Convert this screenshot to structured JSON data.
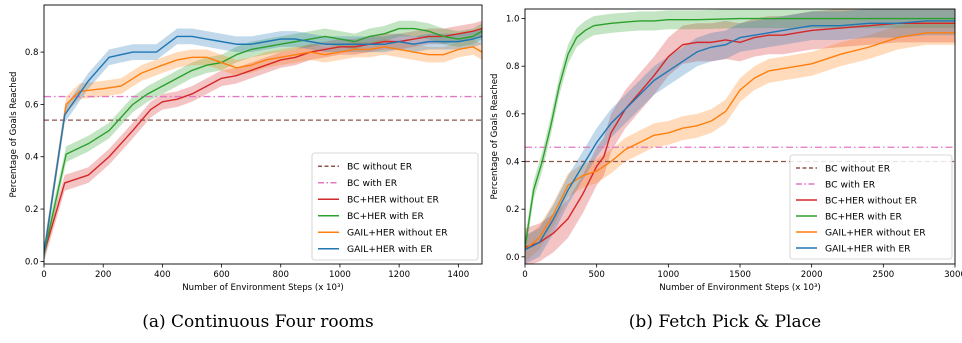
{
  "chart_data": [
    {
      "type": "line",
      "caption": "(a) Continuous Four rooms",
      "xlabel": "Number of Environment Steps (x 10³)",
      "ylabel": "Percentage of Goals Reached",
      "xlim": [
        0,
        1480
      ],
      "ylim": [
        -0.01,
        0.98
      ],
      "xticks": [
        0,
        200,
        400,
        600,
        800,
        1000,
        1200,
        1400
      ],
      "yticks": [
        0.0,
        0.2,
        0.4,
        0.6,
        0.8
      ],
      "ytick_labels": [
        "0.0",
        "0.2",
        "0.4",
        "0.6",
        "0.8"
      ],
      "grid": false,
      "legend_position": "lower-right",
      "series": [
        {
          "name": "BC without ER",
          "style": "hline",
          "dash": "dashed",
          "color": "#8c564b",
          "value": 0.54
        },
        {
          "name": "BC with ER",
          "style": "hline",
          "dash": "dashdot",
          "color": "#e377c2",
          "value": 0.63
        },
        {
          "name": "BC+HER without ER",
          "color": "#d62728",
          "x": [
            0,
            70,
            150,
            220,
            300,
            360,
            400,
            450,
            500,
            550,
            600,
            650,
            700,
            750,
            800,
            850,
            900,
            950,
            1000,
            1050,
            1100,
            1150,
            1200,
            1250,
            1300,
            1350,
            1400,
            1450,
            1480
          ],
          "y": [
            0.03,
            0.3,
            0.33,
            0.4,
            0.5,
            0.58,
            0.61,
            0.62,
            0.64,
            0.67,
            0.7,
            0.71,
            0.73,
            0.75,
            0.77,
            0.78,
            0.8,
            0.81,
            0.82,
            0.82,
            0.83,
            0.84,
            0.84,
            0.85,
            0.86,
            0.86,
            0.87,
            0.88,
            0.89
          ],
          "band": 0.03
        },
        {
          "name": "BC+HER with ER",
          "color": "#2ca02c",
          "x": [
            0,
            75,
            150,
            220,
            300,
            350,
            400,
            450,
            500,
            550,
            600,
            650,
            700,
            750,
            800,
            850,
            900,
            950,
            1000,
            1050,
            1100,
            1150,
            1200,
            1250,
            1300,
            1350,
            1400,
            1450,
            1480
          ],
          "y": [
            0.03,
            0.41,
            0.45,
            0.5,
            0.6,
            0.64,
            0.67,
            0.7,
            0.73,
            0.75,
            0.76,
            0.79,
            0.81,
            0.82,
            0.83,
            0.84,
            0.85,
            0.86,
            0.85,
            0.84,
            0.86,
            0.87,
            0.89,
            0.89,
            0.88,
            0.86,
            0.85,
            0.86,
            0.88
          ],
          "band": 0.03
        },
        {
          "name": "GAIL+HER without ER",
          "color": "#ff7f0e",
          "x": [
            0,
            75,
            120,
            200,
            260,
            330,
            400,
            450,
            500,
            550,
            600,
            650,
            700,
            750,
            800,
            850,
            900,
            950,
            1000,
            1050,
            1100,
            1150,
            1200,
            1250,
            1300,
            1350,
            1400,
            1450,
            1480
          ],
          "y": [
            0.03,
            0.6,
            0.65,
            0.66,
            0.67,
            0.72,
            0.75,
            0.77,
            0.78,
            0.78,
            0.76,
            0.74,
            0.75,
            0.77,
            0.78,
            0.79,
            0.8,
            0.79,
            0.8,
            0.81,
            0.81,
            0.82,
            0.81,
            0.8,
            0.79,
            0.79,
            0.81,
            0.82,
            0.8
          ],
          "band": 0.03
        },
        {
          "name": "GAIL+HER with ER",
          "color": "#1f77b4",
          "x": [
            0,
            70,
            150,
            220,
            300,
            380,
            450,
            500,
            550,
            600,
            650,
            700,
            750,
            800,
            850,
            900,
            950,
            1000,
            1050,
            1100,
            1150,
            1200,
            1250,
            1300,
            1350,
            1400,
            1450,
            1480
          ],
          "y": [
            0.03,
            0.56,
            0.69,
            0.78,
            0.8,
            0.8,
            0.86,
            0.86,
            0.85,
            0.84,
            0.83,
            0.83,
            0.84,
            0.85,
            0.85,
            0.84,
            0.83,
            0.83,
            0.83,
            0.83,
            0.83,
            0.84,
            0.83,
            0.84,
            0.84,
            0.84,
            0.85,
            0.86
          ],
          "band": 0.03
        }
      ]
    },
    {
      "type": "line",
      "caption": "(b) Fetch Pick & Place",
      "xlabel": "Number of Environment Steps (x 10³)",
      "ylabel": "Percentage of Goals Reached",
      "xlim": [
        0,
        3000
      ],
      "ylim": [
        -0.03,
        1.04
      ],
      "xticks": [
        0,
        500,
        1000,
        1500,
        2000,
        2500,
        3000
      ],
      "yticks": [
        0.0,
        0.2,
        0.4,
        0.6,
        0.8,
        1.0
      ],
      "ytick_labels": [
        "0.0",
        "0.2",
        "0.4",
        "0.6",
        "0.8",
        "1.0"
      ],
      "grid": false,
      "legend_position": "lower-right",
      "series": [
        {
          "name": "BC without ER",
          "style": "hline",
          "dash": "dashed",
          "color": "#8c564b",
          "value": 0.4
        },
        {
          "name": "BC with ER",
          "style": "hline",
          "dash": "dashdot",
          "color": "#e377c2",
          "value": 0.46
        },
        {
          "name": "BC+HER without ER",
          "color": "#d62728",
          "x": [
            0,
            100,
            200,
            300,
            400,
            500,
            550,
            600,
            700,
            800,
            900,
            1000,
            1100,
            1200,
            1300,
            1400,
            1500,
            1600,
            1700,
            1800,
            1900,
            2000,
            2200,
            2400,
            2600,
            2800,
            3000
          ],
          "y": [
            0.04,
            0.06,
            0.1,
            0.16,
            0.26,
            0.38,
            0.42,
            0.52,
            0.62,
            0.69,
            0.76,
            0.84,
            0.89,
            0.9,
            0.9,
            0.91,
            0.9,
            0.92,
            0.93,
            0.93,
            0.94,
            0.95,
            0.96,
            0.97,
            0.98,
            0.98,
            0.98
          ],
          "band": 0.08
        },
        {
          "name": "BC+HER with ER",
          "color": "#2ca02c",
          "x": [
            0,
            60,
            120,
            180,
            240,
            300,
            360,
            420,
            480,
            600,
            700,
            800,
            900,
            1000,
            1200,
            1500,
            2000,
            2500,
            3000
          ],
          "y": [
            0.04,
            0.28,
            0.4,
            0.55,
            0.72,
            0.85,
            0.92,
            0.95,
            0.97,
            0.98,
            0.985,
            0.99,
            0.99,
            0.995,
            0.995,
            1.0,
            1.0,
            1.0,
            1.0
          ],
          "band": 0.04
        },
        {
          "name": "GAIL+HER without ER",
          "color": "#ff7f0e",
          "x": [
            0,
            100,
            200,
            300,
            400,
            500,
            600,
            700,
            800,
            900,
            1000,
            1100,
            1200,
            1300,
            1400,
            1500,
            1600,
            1700,
            1800,
            1900,
            2000,
            2200,
            2400,
            2600,
            2800,
            3000
          ],
          "y": [
            0.03,
            0.08,
            0.18,
            0.3,
            0.34,
            0.36,
            0.4,
            0.45,
            0.48,
            0.51,
            0.52,
            0.54,
            0.55,
            0.57,
            0.61,
            0.7,
            0.75,
            0.78,
            0.79,
            0.8,
            0.81,
            0.85,
            0.88,
            0.92,
            0.94,
            0.94
          ],
          "band": 0.05
        },
        {
          "name": "GAIL+HER with ER",
          "color": "#1f77b4",
          "x": [
            0,
            100,
            200,
            300,
            400,
            500,
            600,
            700,
            800,
            900,
            1000,
            1100,
            1200,
            1300,
            1400,
            1500,
            1600,
            1700,
            1800,
            1900,
            2000,
            2200,
            2400,
            2600,
            2800,
            3000
          ],
          "y": [
            0.03,
            0.06,
            0.16,
            0.28,
            0.38,
            0.48,
            0.56,
            0.62,
            0.68,
            0.74,
            0.78,
            0.82,
            0.86,
            0.88,
            0.89,
            0.92,
            0.93,
            0.94,
            0.95,
            0.96,
            0.97,
            0.97,
            0.98,
            0.98,
            0.99,
            0.99
          ],
          "band": 0.06
        }
      ]
    }
  ]
}
